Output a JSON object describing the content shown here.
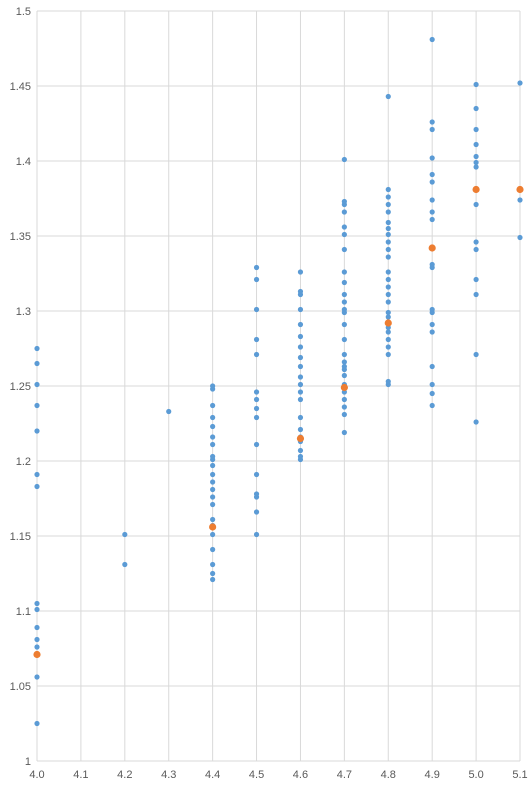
{
  "chart_data": {
    "type": "scatter",
    "title": "",
    "xlabel": "",
    "ylabel": "",
    "xlim": [
      4.0,
      5.1
    ],
    "ylim": [
      1.0,
      1.5
    ],
    "x_ticks": [
      "4.0",
      "4.1",
      "4.2",
      "4.3",
      "4.4",
      "4.5",
      "4.6",
      "4.7",
      "4.8",
      "4.9",
      "5.0",
      "5.1"
    ],
    "y_ticks": [
      "1",
      "1.05",
      "1.1",
      "1.15",
      "1.2",
      "1.25",
      "1.3",
      "1.35",
      "1.4",
      "1.45",
      "1.5"
    ],
    "grid": "vertical and horizontal",
    "colors": {
      "observed": "#5B9BD5",
      "mean": "#ED7D31",
      "grid": "#D9D9D9",
      "axis_text": "#595959"
    },
    "series": [
      {
        "role": "observed",
        "points": [
          [
            4.0,
            1.025
          ],
          [
            4.0,
            1.056
          ],
          [
            4.0,
            1.071
          ],
          [
            4.0,
            1.076
          ],
          [
            4.0,
            1.081
          ],
          [
            4.0,
            1.089
          ],
          [
            4.0,
            1.101
          ],
          [
            4.0,
            1.105
          ],
          [
            4.0,
            1.183
          ],
          [
            4.0,
            1.191
          ],
          [
            4.0,
            1.22
          ],
          [
            4.0,
            1.237
          ],
          [
            4.0,
            1.251
          ],
          [
            4.0,
            1.265
          ],
          [
            4.0,
            1.275
          ],
          [
            4.2,
            1.131
          ],
          [
            4.2,
            1.151
          ],
          [
            4.3,
            1.233
          ],
          [
            4.4,
            1.121
          ],
          [
            4.4,
            1.125
          ],
          [
            4.4,
            1.131
          ],
          [
            4.4,
            1.141
          ],
          [
            4.4,
            1.151
          ],
          [
            4.4,
            1.157
          ],
          [
            4.4,
            1.161
          ],
          [
            4.4,
            1.171
          ],
          [
            4.4,
            1.176
          ],
          [
            4.4,
            1.181
          ],
          [
            4.4,
            1.186
          ],
          [
            4.4,
            1.191
          ],
          [
            4.4,
            1.197
          ],
          [
            4.4,
            1.201
          ],
          [
            4.4,
            1.203
          ],
          [
            4.4,
            1.211
          ],
          [
            4.4,
            1.216
          ],
          [
            4.4,
            1.223
          ],
          [
            4.4,
            1.229
          ],
          [
            4.4,
            1.237
          ],
          [
            4.4,
            1.248
          ],
          [
            4.4,
            1.25
          ],
          [
            4.5,
            1.151
          ],
          [
            4.5,
            1.166
          ],
          [
            4.5,
            1.176
          ],
          [
            4.5,
            1.178
          ],
          [
            4.5,
            1.191
          ],
          [
            4.5,
            1.211
          ],
          [
            4.5,
            1.229
          ],
          [
            4.5,
            1.235
          ],
          [
            4.5,
            1.241
          ],
          [
            4.5,
            1.246
          ],
          [
            4.5,
            1.271
          ],
          [
            4.5,
            1.281
          ],
          [
            4.5,
            1.301
          ],
          [
            4.5,
            1.321
          ],
          [
            4.5,
            1.329
          ],
          [
            4.6,
            1.201
          ],
          [
            4.6,
            1.203
          ],
          [
            4.6,
            1.207
          ],
          [
            4.6,
            1.213
          ],
          [
            4.6,
            1.216
          ],
          [
            4.6,
            1.221
          ],
          [
            4.6,
            1.229
          ],
          [
            4.6,
            1.241
          ],
          [
            4.6,
            1.246
          ],
          [
            4.6,
            1.251
          ],
          [
            4.6,
            1.256
          ],
          [
            4.6,
            1.263
          ],
          [
            4.6,
            1.269
          ],
          [
            4.6,
            1.276
          ],
          [
            4.6,
            1.283
          ],
          [
            4.6,
            1.291
          ],
          [
            4.6,
            1.301
          ],
          [
            4.6,
            1.311
          ],
          [
            4.6,
            1.313
          ],
          [
            4.6,
            1.326
          ],
          [
            4.7,
            1.219
          ],
          [
            4.7,
            1.231
          ],
          [
            4.7,
            1.236
          ],
          [
            4.7,
            1.241
          ],
          [
            4.7,
            1.246
          ],
          [
            4.7,
            1.251
          ],
          [
            4.7,
            1.257
          ],
          [
            4.7,
            1.261
          ],
          [
            4.7,
            1.263
          ],
          [
            4.7,
            1.266
          ],
          [
            4.7,
            1.271
          ],
          [
            4.7,
            1.281
          ],
          [
            4.7,
            1.291
          ],
          [
            4.7,
            1.299
          ],
          [
            4.7,
            1.301
          ],
          [
            4.7,
            1.306
          ],
          [
            4.7,
            1.311
          ],
          [
            4.7,
            1.319
          ],
          [
            4.7,
            1.326
          ],
          [
            4.7,
            1.341
          ],
          [
            4.7,
            1.351
          ],
          [
            4.7,
            1.356
          ],
          [
            4.7,
            1.366
          ],
          [
            4.7,
            1.371
          ],
          [
            4.7,
            1.373
          ],
          [
            4.7,
            1.401
          ],
          [
            4.8,
            1.251
          ],
          [
            4.8,
            1.253
          ],
          [
            4.8,
            1.271
          ],
          [
            4.8,
            1.276
          ],
          [
            4.8,
            1.281
          ],
          [
            4.8,
            1.286
          ],
          [
            4.8,
            1.289
          ],
          [
            4.8,
            1.296
          ],
          [
            4.8,
            1.299
          ],
          [
            4.8,
            1.306
          ],
          [
            4.8,
            1.311
          ],
          [
            4.8,
            1.316
          ],
          [
            4.8,
            1.321
          ],
          [
            4.8,
            1.326
          ],
          [
            4.8,
            1.336
          ],
          [
            4.8,
            1.341
          ],
          [
            4.8,
            1.346
          ],
          [
            4.8,
            1.351
          ],
          [
            4.8,
            1.355
          ],
          [
            4.8,
            1.359
          ],
          [
            4.8,
            1.366
          ],
          [
            4.8,
            1.371
          ],
          [
            4.8,
            1.376
          ],
          [
            4.8,
            1.381
          ],
          [
            4.8,
            1.443
          ],
          [
            4.9,
            1.237
          ],
          [
            4.9,
            1.245
          ],
          [
            4.9,
            1.251
          ],
          [
            4.9,
            1.263
          ],
          [
            4.9,
            1.286
          ],
          [
            4.9,
            1.291
          ],
          [
            4.9,
            1.299
          ],
          [
            4.9,
            1.301
          ],
          [
            4.9,
            1.329
          ],
          [
            4.9,
            1.331
          ],
          [
            4.9,
            1.361
          ],
          [
            4.9,
            1.366
          ],
          [
            4.9,
            1.374
          ],
          [
            4.9,
            1.386
          ],
          [
            4.9,
            1.391
          ],
          [
            4.9,
            1.402
          ],
          [
            4.9,
            1.421
          ],
          [
            4.9,
            1.426
          ],
          [
            4.9,
            1.481
          ],
          [
            5.0,
            1.226
          ],
          [
            5.0,
            1.271
          ],
          [
            5.0,
            1.311
          ],
          [
            5.0,
            1.321
          ],
          [
            5.0,
            1.341
          ],
          [
            5.0,
            1.346
          ],
          [
            5.0,
            1.371
          ],
          [
            5.0,
            1.396
          ],
          [
            5.0,
            1.399
          ],
          [
            5.0,
            1.403
          ],
          [
            5.0,
            1.411
          ],
          [
            5.0,
            1.421
          ],
          [
            5.0,
            1.435
          ],
          [
            5.0,
            1.451
          ],
          [
            5.1,
            1.349
          ],
          [
            5.1,
            1.374
          ],
          [
            5.1,
            1.452
          ]
        ]
      },
      {
        "role": "mean",
        "points": [
          [
            4.0,
            1.071
          ],
          [
            4.4,
            1.156
          ],
          [
            4.6,
            1.215
          ],
          [
            4.7,
            1.249
          ],
          [
            4.8,
            1.292
          ],
          [
            4.9,
            1.342
          ],
          [
            5.0,
            1.381
          ],
          [
            5.1,
            1.381
          ]
        ]
      }
    ]
  }
}
